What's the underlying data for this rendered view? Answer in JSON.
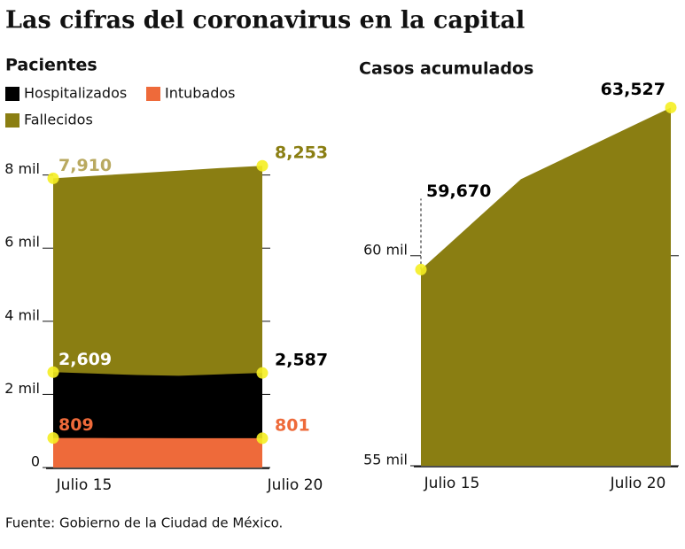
{
  "title": "Las cifras del coronavirus en la capital",
  "source": "Fuente: Gobierno de la Ciudad de México.",
  "chart_data": [
    {
      "type": "area",
      "title": "Pacientes",
      "categories": [
        "Julio 15",
        null,
        null,
        null,
        null,
        "Julio 20"
      ],
      "series": [
        {
          "name": "Hospitalizados",
          "color": "#000000",
          "values": [
            2609,
            2570,
            2530,
            2510,
            2550,
            2587
          ],
          "value_labels": [
            "2,609",
            null,
            null,
            null,
            null,
            "2,587"
          ]
        },
        {
          "name": "Intubados",
          "color": "#ee6a3a",
          "values": [
            809,
            807,
            805,
            803,
            802,
            801
          ],
          "value_labels": [
            "809",
            null,
            null,
            null,
            null,
            "801"
          ]
        },
        {
          "name": "Fallecidos",
          "color": "#8a7e12",
          "values": [
            7910,
            7980,
            8050,
            8120,
            8190,
            8253
          ],
          "value_labels": [
            "7,910",
            null,
            null,
            null,
            null,
            "8,253"
          ]
        }
      ],
      "ylim": [
        0,
        8500
      ],
      "yticks": [
        0,
        {
          "value": 2000,
          "label": "2 mil"
        },
        {
          "value": 4000,
          "label": "4 mil"
        },
        {
          "value": 6000,
          "label": "6 mil"
        },
        {
          "value": 8000,
          "label": "8 mil"
        }
      ]
    },
    {
      "type": "area",
      "title": "Casos acumulados",
      "categories": [
        "Julio 15",
        null,
        null,
        null,
        null,
        "Julio 20"
      ],
      "series": [
        {
          "name": "Casos acumulados",
          "color": "#8a7e12",
          "values": [
            59670,
            60745,
            61820,
            62390,
            62960,
            63527
          ],
          "value_labels": [
            "59,670",
            null,
            null,
            null,
            null,
            "63,527"
          ]
        }
      ],
      "ylim": [
        55000,
        64000
      ],
      "yticks": [
        {
          "value": 55000,
          "label": "55 mil"
        },
        {
          "value": 60000,
          "label": "60 mil"
        }
      ]
    }
  ]
}
